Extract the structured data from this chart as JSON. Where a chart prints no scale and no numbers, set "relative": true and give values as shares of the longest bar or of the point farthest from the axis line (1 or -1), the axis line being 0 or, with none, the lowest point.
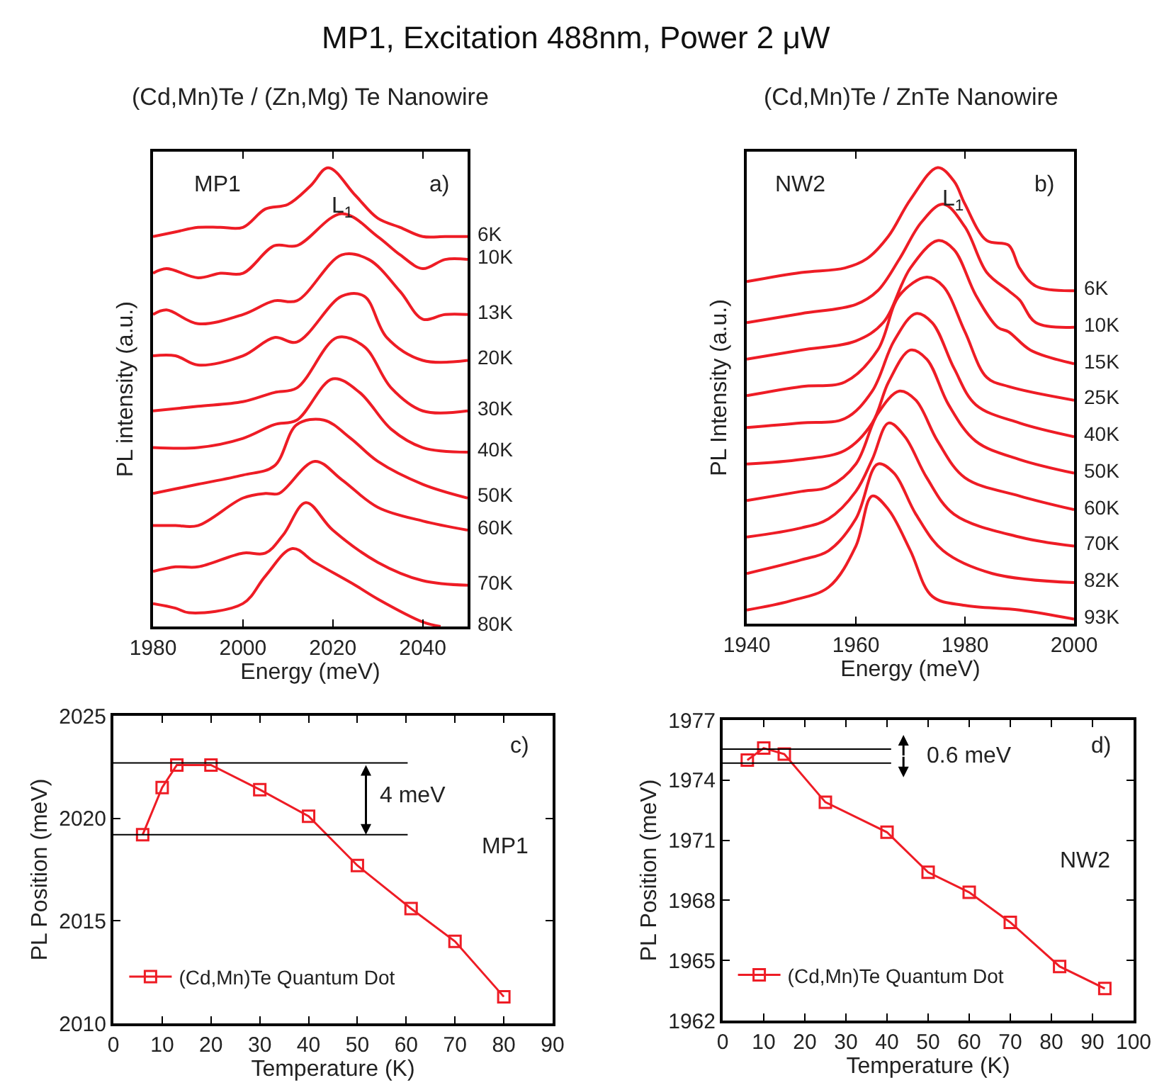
{
  "chart_data": [
    {
      "type": "line",
      "title": "MP1, Excitation 488nm, Power 2 μW",
      "subtitle": "(Cd,Mn)Te / (Zn,Mg) Te Nanowire",
      "xlabel": "Energy (meV)",
      "ylabel": "PL intensity (a.u.)",
      "relative": true,
      "xlim": [
        1980,
        2050
      ],
      "xticks": [
        1980,
        2000,
        2020,
        2040
      ],
      "annotations": [
        "MP1",
        "a)",
        "L$_{1}$"
      ],
      "series": [
        {
          "name": "6K",
          "color": "#ee1c25",
          "x": [
            1980,
            1985,
            1990,
            1995,
            2000,
            2005,
            2010,
            2015,
            2019,
            2025,
            2030,
            2035,
            2040,
            2045,
            2050
          ],
          "values": [
            0.85,
            0.86,
            0.87,
            0.87,
            0.87,
            0.91,
            0.92,
            0.96,
            1.0,
            0.94,
            0.89,
            0.87,
            0.85,
            0.85,
            0.85
          ]
        },
        {
          "name": "10K",
          "color": "#ee1c25",
          "x": [
            1980,
            1983,
            1990,
            1995,
            2000,
            2007,
            2012,
            2022,
            2030,
            2035,
            2040,
            2045,
            2050
          ],
          "values": [
            0.77,
            0.78,
            0.76,
            0.77,
            0.77,
            0.83,
            0.83,
            0.9,
            0.85,
            0.81,
            0.78,
            0.8,
            0.8
          ]
        },
        {
          "name": "13K",
          "color": "#ee1c25",
          "x": [
            1980,
            1983,
            1990,
            2000,
            2007,
            2012,
            2022,
            2028,
            2035,
            2040,
            2045,
            2050
          ],
          "values": [
            0.68,
            0.69,
            0.66,
            0.68,
            0.71,
            0.71,
            0.81,
            0.8,
            0.73,
            0.67,
            0.68,
            0.68
          ]
        },
        {
          "name": "20K",
          "color": "#ee1c25",
          "x": [
            1980,
            1985,
            1990,
            2000,
            2007,
            2012,
            2022,
            2027,
            2032,
            2040,
            2050
          ],
          "values": [
            0.59,
            0.59,
            0.57,
            0.59,
            0.63,
            0.62,
            0.72,
            0.72,
            0.63,
            0.58,
            0.58
          ]
        },
        {
          "name": "30K",
          "color": "#ee1c25",
          "x": [
            1980,
            1990,
            2000,
            2007,
            2012,
            2021,
            2027,
            2033,
            2040,
            2050
          ],
          "values": [
            0.47,
            0.48,
            0.49,
            0.51,
            0.52,
            0.63,
            0.61,
            0.52,
            0.47,
            0.47
          ]
        },
        {
          "name": "40K",
          "color": "#ee1c25",
          "x": [
            1980,
            1990,
            2000,
            2007,
            2012,
            2020,
            2026,
            2033,
            2040,
            2050
          ],
          "values": [
            0.39,
            0.39,
            0.41,
            0.44,
            0.45,
            0.54,
            0.51,
            0.43,
            0.39,
            0.38
          ]
        },
        {
          "name": "50K",
          "color": "#ee1c25",
          "x": [
            1980,
            1985,
            1990,
            2000,
            2007,
            2012,
            2018,
            2024,
            2030,
            2040,
            2050
          ],
          "values": [
            0.29,
            0.3,
            0.31,
            0.33,
            0.35,
            0.44,
            0.45,
            0.41,
            0.36,
            0.31,
            0.28
          ]
        },
        {
          "name": "60K",
          "color": "#ee1c25",
          "x": [
            1980,
            1985,
            1990,
            2000,
            2005,
            2008,
            2016,
            2022,
            2030,
            2040,
            2050
          ],
          "values": [
            0.22,
            0.22,
            0.22,
            0.28,
            0.29,
            0.29,
            0.36,
            0.32,
            0.26,
            0.23,
            0.21
          ]
        },
        {
          "name": "70K",
          "color": "#ee1c25",
          "x": [
            1980,
            1985,
            1990,
            2000,
            2005,
            2009,
            2014,
            2020,
            2030,
            2040,
            2050
          ],
          "values": [
            0.12,
            0.13,
            0.13,
            0.16,
            0.16,
            0.2,
            0.27,
            0.21,
            0.14,
            0.1,
            0.09
          ]
        },
        {
          "name": "80K",
          "color": "#ee1c25",
          "x": [
            1980,
            1985,
            1988,
            2000,
            2005,
            2011,
            2016,
            2025,
            2030,
            2040,
            2044
          ],
          "values": [
            0.05,
            0.04,
            0.03,
            0.05,
            0.11,
            0.17,
            0.14,
            0.09,
            0.06,
            0.01,
            0.0
          ]
        }
      ]
    },
    {
      "type": "line",
      "title": "(Cd,Mn)Te / ZnTe Nanowire",
      "xlabel": "Energy (meV)",
      "ylabel": "PL Intensity (a.u.)",
      "relative": true,
      "xlim": [
        1940,
        2000
      ],
      "xticks": [
        1940,
        1960,
        1980,
        2000
      ],
      "annotations": [
        "NW2",
        "b)",
        "L$_{1}$"
      ],
      "series": [
        {
          "name": "6K",
          "color": "#ee1c25",
          "x": [
            1940,
            1950,
            1958,
            1962,
            1966,
            1970,
            1975,
            1978,
            1980,
            1984,
            1988,
            1990,
            1993,
            2000
          ],
          "values": [
            0.75,
            0.77,
            0.78,
            0.8,
            0.85,
            0.93,
            1.0,
            0.97,
            0.92,
            0.84,
            0.83,
            0.78,
            0.74,
            0.73
          ]
        },
        {
          "name": "10K",
          "color": "#ee1c25",
          "x": [
            1940,
            1950,
            1960,
            1964,
            1968,
            1972,
            1976,
            1980,
            1984,
            1988,
            1990,
            1993,
            2000
          ],
          "values": [
            0.66,
            0.68,
            0.7,
            0.73,
            0.8,
            0.88,
            0.92,
            0.87,
            0.77,
            0.73,
            0.71,
            0.66,
            0.65
          ]
        },
        {
          "name": "15K",
          "color": "#ee1c25",
          "x": [
            1940,
            1950,
            1960,
            1965,
            1970,
            1975,
            1978,
            1982,
            1986,
            1988,
            1992,
            2000
          ],
          "values": [
            0.58,
            0.6,
            0.62,
            0.66,
            0.78,
            0.84,
            0.82,
            0.72,
            0.65,
            0.64,
            0.6,
            0.57
          ]
        },
        {
          "name": "25K",
          "color": "#ee1c25",
          "x": [
            1940,
            1950,
            1958,
            1964,
            1968,
            1973,
            1976,
            1980,
            1984,
            1988,
            2000
          ],
          "values": [
            0.5,
            0.52,
            0.53,
            0.6,
            0.72,
            0.76,
            0.74,
            0.64,
            0.54,
            0.52,
            0.49
          ]
        },
        {
          "name": "40K",
          "color": "#ee1c25",
          "x": [
            1940,
            1950,
            1958,
            1963,
            1967,
            1971,
            1974,
            1978,
            1982,
            1990,
            2000
          ],
          "values": [
            0.43,
            0.44,
            0.45,
            0.51,
            0.62,
            0.68,
            0.66,
            0.56,
            0.48,
            0.44,
            0.41
          ]
        },
        {
          "name": "50K",
          "color": "#ee1c25",
          "x": [
            1940,
            1950,
            1958,
            1963,
            1966,
            1970,
            1973,
            1977,
            1982,
            1990,
            2000
          ],
          "values": [
            0.35,
            0.36,
            0.38,
            0.44,
            0.53,
            0.6,
            0.58,
            0.48,
            0.4,
            0.36,
            0.33
          ]
        },
        {
          "name": "60K",
          "color": "#ee1c25",
          "x": [
            1940,
            1950,
            1955,
            1960,
            1964,
            1968,
            1971,
            1975,
            1980,
            1990,
            2000
          ],
          "values": [
            0.27,
            0.29,
            0.3,
            0.35,
            0.46,
            0.51,
            0.49,
            0.4,
            0.32,
            0.28,
            0.25
          ]
        },
        {
          "name": "70K",
          "color": "#ee1c25",
          "x": [
            1940,
            1950,
            1955,
            1960,
            1963,
            1966,
            1969,
            1973,
            1978,
            1990,
            2000
          ],
          "values": [
            0.19,
            0.21,
            0.23,
            0.29,
            0.36,
            0.44,
            0.41,
            0.32,
            0.24,
            0.19,
            0.17
          ]
        },
        {
          "name": "82K",
          "color": "#ee1c25",
          "x": [
            1940,
            1950,
            1955,
            1960,
            1964,
            1967,
            1971,
            1976,
            1985,
            2000
          ],
          "values": [
            0.11,
            0.14,
            0.16,
            0.23,
            0.35,
            0.33,
            0.24,
            0.16,
            0.11,
            0.09
          ]
        },
        {
          "name": "93K",
          "color": "#ee1c25",
          "x": [
            1940,
            1948,
            1955,
            1960,
            1963,
            1966,
            1970,
            1974,
            1980,
            1990,
            2000
          ],
          "values": [
            0.03,
            0.05,
            0.08,
            0.17,
            0.28,
            0.25,
            0.16,
            0.06,
            0.04,
            0.03,
            0.01
          ]
        }
      ]
    },
    {
      "type": "line",
      "xlabel": "Temperature (K)",
      "ylabel": "PL Position (meV)",
      "xlim": [
        0,
        90
      ],
      "xticks": [
        0,
        10,
        20,
        30,
        40,
        50,
        60,
        70,
        80,
        90
      ],
      "ylim": [
        2010,
        2025
      ],
      "yticks": [
        2010,
        2015,
        2020,
        2025
      ],
      "marker": "square",
      "legend": "bottom left",
      "annotations": [
        "c)",
        "MP1",
        "4 meV"
      ],
      "ref_lines": [
        {
          "axis": "y",
          "value": 2022.7,
          "color": "#000000"
        },
        {
          "axis": "y",
          "value": 2019.2,
          "color": "#000000"
        }
      ],
      "series": [
        {
          "name": "(Cd,Mn)Te Quantum Dot",
          "color": "#ee1c25",
          "x": [
            6,
            10,
            13,
            20,
            30,
            40,
            50,
            61,
            70,
            80
          ],
          "values": [
            2019.2,
            2021.5,
            2022.6,
            2022.6,
            2021.4,
            2020.1,
            2017.7,
            2015.6,
            2014.0,
            2011.3
          ]
        }
      ]
    },
    {
      "type": "line",
      "xlabel": "Temperature (K)",
      "ylabel": "PL Position (meV)",
      "xlim": [
        0,
        100
      ],
      "xticks": [
        0,
        10,
        20,
        30,
        40,
        50,
        60,
        70,
        80,
        90,
        100
      ],
      "ylim": [
        1962,
        1977
      ],
      "yticks": [
        1962,
        1965,
        1968,
        1971,
        1974,
        1977
      ],
      "marker": "square",
      "legend": "bottom left",
      "annotations": [
        "d)",
        "NW2",
        "0.6 meV"
      ],
      "ref_lines": [
        {
          "axis": "y",
          "value": 1975.55,
          "color": "#000000"
        },
        {
          "axis": "y",
          "value": 1974.85,
          "color": "#000000"
        }
      ],
      "series": [
        {
          "name": "(Cd,Mn)Te Quantum Dot",
          "color": "#ee1c25",
          "x": [
            6,
            10,
            15,
            25,
            40,
            50,
            60,
            70,
            82,
            93
          ],
          "values": [
            1975.0,
            1975.6,
            1975.3,
            1972.9,
            1971.4,
            1969.4,
            1968.4,
            1966.9,
            1964.7,
            1963.6
          ]
        }
      ]
    }
  ]
}
